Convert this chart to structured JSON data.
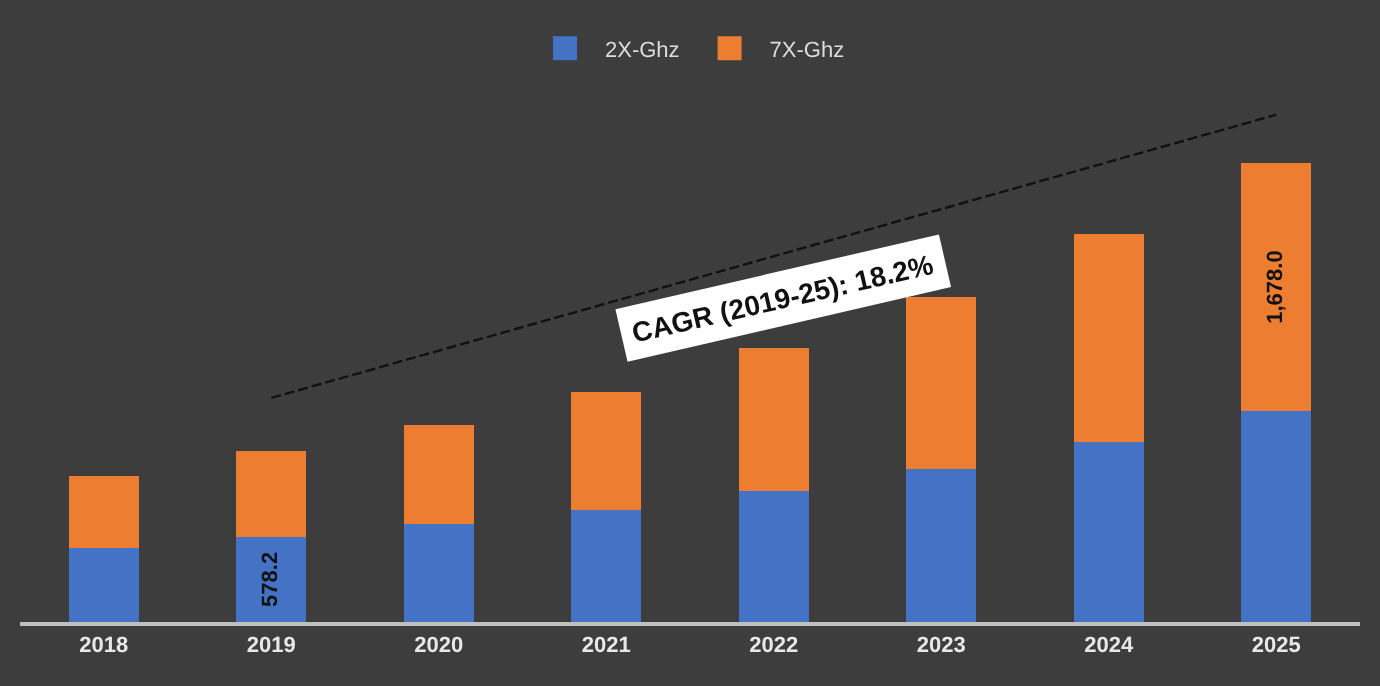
{
  "chart_data": {
    "type": "bar",
    "stacked": true,
    "categories": [
      "2018",
      "2019",
      "2020",
      "2021",
      "2022",
      "2023",
      "2024",
      "2025"
    ],
    "series": [
      {
        "name": "2X-Ghz",
        "color": "#4472c4",
        "values": [
          503,
          578.2,
          663,
          757,
          890,
          1037,
          1224,
          1432
        ],
        "value_labels": [
          null,
          "578.2",
          null,
          null,
          null,
          null,
          null,
          null
        ]
      },
      {
        "name": "7X-Ghz",
        "color": "#ed7d31",
        "values": [
          485,
          583,
          671,
          805,
          965,
          1165,
          1410,
          1678.0
        ],
        "value_labels": [
          null,
          null,
          null,
          null,
          null,
          null,
          null,
          "1,678.0"
        ]
      },
      {
        "type": "line",
        "color": "#111111",
        "values": [
          null,
          1520,
          null,
          null,
          null,
          null,
          null,
          3440
        ],
        "line_style": "dashed",
        "marker": "none"
      }
    ],
    "annotations": [
      "CAGR (2019-25): 18.2%"
    ],
    "legend": "top"
  }
}
